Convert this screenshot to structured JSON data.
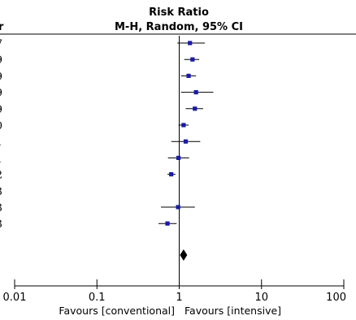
{
  "chart_data": {
    "type": "forest",
    "header": {
      "col_left_fragment": "r",
      "title_line1": "Risk Ratio",
      "title_line2": "M-H, Random, 95% CI"
    },
    "scale": "log",
    "xlim": [
      0.01,
      100
    ],
    "x_ticks": [
      {
        "value": 0.01,
        "label": "0.01"
      },
      {
        "value": 0.1,
        "label": "0.1"
      },
      {
        "value": 1,
        "label": "1"
      },
      {
        "value": 10,
        "label": "10"
      },
      {
        "value": 100,
        "label": "100"
      }
    ],
    "reference_line": 1,
    "studies": [
      {
        "year_fragment": "7",
        "rr": 1.35,
        "ci": [
          0.95,
          2.05
        ],
        "shown": true
      },
      {
        "year_fragment": "9",
        "rr": 1.45,
        "ci": [
          1.15,
          1.75
        ],
        "shown": true
      },
      {
        "year_fragment": "9",
        "rr": 1.3,
        "ci": [
          1.05,
          1.6
        ],
        "shown": true
      },
      {
        "year_fragment": "9",
        "rr": 1.6,
        "ci": [
          1.05,
          2.6
        ],
        "shown": true
      },
      {
        "year_fragment": "9",
        "rr": 1.55,
        "ci": [
          1.2,
          1.95
        ],
        "shown": true
      },
      {
        "year_fragment": "0",
        "rr": 1.13,
        "ci": [
          0.98,
          1.3
        ],
        "shown": true
      },
      {
        "year_fragment": "1",
        "rr": 1.2,
        "ci": [
          0.8,
          1.8
        ],
        "shown": true
      },
      {
        "year_fragment": "1",
        "rr": 0.98,
        "ci": [
          0.73,
          1.32
        ],
        "shown": true
      },
      {
        "year_fragment": "2",
        "rr": 0.8,
        "ci": [
          0.72,
          0.9
        ],
        "shown": true
      },
      {
        "year_fragment": "3",
        "rr": null,
        "ci": null,
        "shown": false
      },
      {
        "year_fragment": "3",
        "rr": 0.97,
        "ci": [
          0.6,
          1.55
        ],
        "shown": true
      },
      {
        "year_fragment": "3",
        "rr": 0.72,
        "ci": [
          0.56,
          0.93
        ],
        "shown": true
      }
    ],
    "pooled": {
      "rr": 1.13,
      "ci": [
        1.02,
        1.25
      ]
    },
    "favours_left": "Favours [conventional]",
    "favours_right": "Favours [intensive]"
  }
}
